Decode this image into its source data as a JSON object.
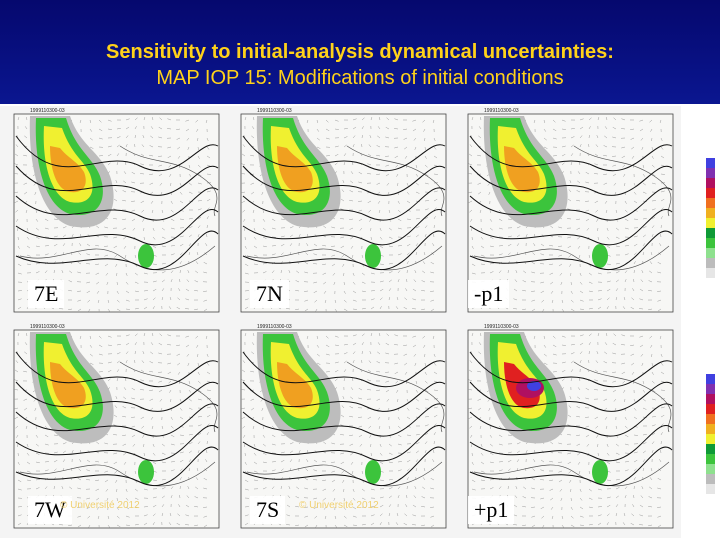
{
  "slide": {
    "title": "Sensitivity to initial-analysis dynamical uncertainties:",
    "subtitle": "MAP IOP 15: Modifications of initial conditions"
  },
  "colors": {
    "header_bg": "#05086e",
    "title_text": "#ffd21a",
    "precip_scale": [
      "#e6e6e6",
      "#bcbcbc",
      "#8ee08e",
      "#3cc43c",
      "#0f9a36",
      "#f0f030",
      "#f0b020",
      "#f07020",
      "#e02020",
      "#b01060",
      "#8030b0",
      "#4040e0"
    ]
  },
  "panels": [
    {
      "label": "7E",
      "date": "1999110300-03",
      "copyright": "",
      "intensity": 1
    },
    {
      "label": "7N",
      "date": "1999110300-03",
      "copyright": "",
      "intensity": 1
    },
    {
      "label": "-p1",
      "date": "1999110300-03",
      "copyright": "",
      "intensity": 1
    },
    {
      "label": "7W",
      "date": "1999110300-03",
      "copyright": "© Université 2012",
      "intensity": 1
    },
    {
      "label": "7S",
      "date": "1999110300-03",
      "copyright": "© Université 2012",
      "intensity": 1
    },
    {
      "label": "+p1",
      "date": "1999110300-03",
      "copyright": "",
      "intensity": 2
    }
  ]
}
